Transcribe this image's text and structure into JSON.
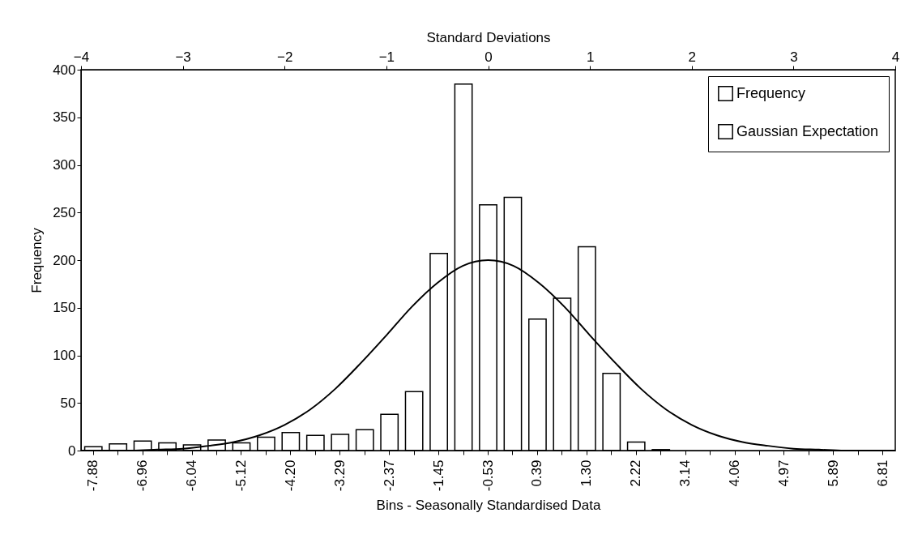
{
  "chart_data": {
    "type": "bar",
    "xlabel": "Bins - Seasonally Standardised Data",
    "ylabel": "Frequency",
    "x2label": "Standard Deviations",
    "categories": [
      "-7.88",
      null,
      "-6.96",
      null,
      "-6.04",
      null,
      "-5.12",
      null,
      "-4.20",
      null,
      "-3.29",
      null,
      "-2.37",
      null,
      "-1.45",
      null,
      "-0.53",
      null,
      "0.39",
      null,
      "1.30",
      null,
      "2.22",
      null,
      "3.14",
      null,
      "4.06",
      null,
      "4.97",
      null,
      "5.89",
      null,
      "6.81"
    ],
    "series": [
      {
        "name": "Frequency",
        "color": "#000000",
        "values": [
          4,
          7,
          10,
          8,
          6,
          11,
          8,
          14,
          19,
          16,
          17,
          22,
          38,
          62,
          207,
          385,
          258,
          266,
          138,
          160,
          214,
          81,
          9,
          1,
          0,
          0,
          0,
          0,
          0,
          0,
          0,
          0,
          0
        ]
      },
      {
        "name": "Gaussian Expectation",
        "type": "line",
        "axis": "x2",
        "color": "#000000",
        "x": [
          -4,
          -3.75,
          -3.5,
          -3.25,
          -3,
          -2.75,
          -2.5,
          -2.25,
          -2,
          -1.75,
          -1.5,
          -1.25,
          -1,
          -0.75,
          -0.5,
          -0.25,
          0,
          0.25,
          0.5,
          0.75,
          1,
          1.25,
          1.5,
          1.75,
          2,
          2.25,
          2.5,
          2.75,
          3,
          3.25,
          3.5,
          3.75,
          4
        ],
        "values": [
          0,
          0,
          0,
          1,
          2,
          5,
          9,
          16,
          27,
          43,
          65,
          92,
          121,
          151,
          176,
          194,
          200,
          194,
          176,
          151,
          121,
          92,
          65,
          43,
          27,
          16,
          9,
          5,
          2,
          1,
          0,
          0,
          0
        ]
      }
    ],
    "ylim": [
      0,
      400
    ],
    "yticks": [
      0,
      50,
      100,
      150,
      200,
      250,
      300,
      350,
      400
    ],
    "x2lim": [
      -4,
      4
    ],
    "x2ticks": [
      -4,
      -3,
      -2,
      -1,
      0,
      1,
      2,
      3,
      4
    ],
    "legend": "top right",
    "grid": false
  }
}
